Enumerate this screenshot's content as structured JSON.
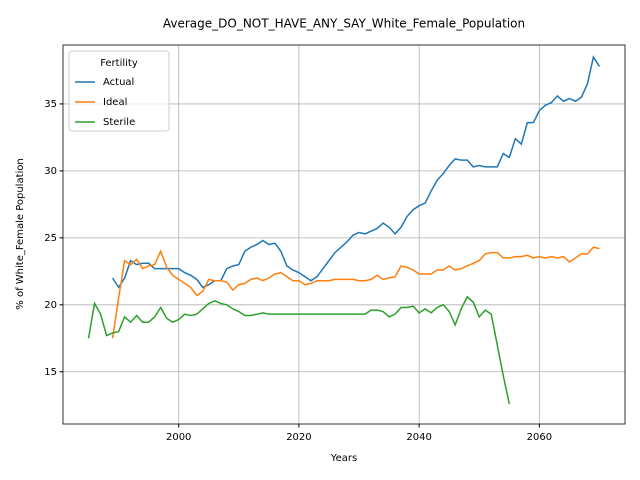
{
  "chart_data": {
    "type": "line",
    "title": "Average_DO_NOT_HAVE_ANY_SAY_White_Female_Population",
    "xlabel": "Years",
    "ylabel": "% of White_Female Population",
    "legend_title": "Fertility",
    "legend_loc": "upper-left",
    "grid": true,
    "xlim": [
      1980.75,
      2074.25
    ],
    "ylim": [
      11.1,
      39.4
    ],
    "xticks": [
      2000,
      2020,
      2040,
      2060
    ],
    "yticks": [
      15,
      20,
      25,
      30,
      35
    ],
    "x": [
      1985,
      1986,
      1987,
      1988,
      1989,
      1990,
      1991,
      1992,
      1993,
      1994,
      1995,
      1996,
      1997,
      1998,
      1999,
      2000,
      2001,
      2002,
      2003,
      2004,
      2005,
      2006,
      2007,
      2008,
      2009,
      2010,
      2011,
      2012,
      2013,
      2014,
      2015,
      2016,
      2017,
      2018,
      2019,
      2020,
      2021,
      2022,
      2023,
      2024,
      2025,
      2026,
      2027,
      2028,
      2029,
      2030,
      2031,
      2032,
      2033,
      2034,
      2035,
      2036,
      2037,
      2038,
      2039,
      2040,
      2041,
      2042,
      2043,
      2044,
      2045,
      2046,
      2047,
      2048,
      2049,
      2050,
      2051,
      2052,
      2053,
      2054,
      2055,
      2056,
      2057,
      2058,
      2059,
      2060,
      2061,
      2062,
      2063,
      2064,
      2065,
      2066,
      2067,
      2068,
      2069,
      2070
    ],
    "series": [
      {
        "name": "Actual",
        "color": "#1f77b4",
        "values": [
          null,
          null,
          null,
          null,
          22.0,
          21.3,
          22.0,
          23.3,
          23.0,
          23.1,
          23.1,
          22.7,
          22.7,
          22.7,
          22.7,
          22.7,
          22.4,
          22.2,
          21.9,
          21.3,
          21.5,
          21.8,
          21.8,
          22.7,
          22.9,
          23.0,
          24.0,
          24.3,
          24.5,
          24.8,
          24.5,
          24.6,
          24.0,
          22.9,
          22.6,
          22.4,
          22.1,
          21.8,
          22.1,
          22.7,
          23.3,
          23.9,
          24.3,
          24.7,
          25.2,
          25.4,
          25.3,
          25.5,
          25.7,
          26.1,
          25.8,
          25.3,
          25.8,
          26.6,
          27.1,
          27.4,
          27.6,
          28.5,
          29.3,
          29.8,
          30.4,
          30.9,
          30.8,
          30.8,
          30.3,
          30.4,
          30.3,
          30.3,
          30.3,
          31.3,
          31.0,
          32.4,
          32.0,
          33.6,
          33.6,
          34.5,
          34.9,
          35.1,
          35.6,
          35.2,
          35.4,
          35.2,
          35.5,
          36.5,
          38.5,
          37.8
        ]
      },
      {
        "name": "Ideal",
        "color": "#ff7f0e",
        "values": [
          null,
          null,
          null,
          null,
          17.5,
          20.5,
          23.3,
          23.0,
          23.4,
          22.7,
          22.9,
          23.0,
          24.0,
          22.8,
          22.2,
          21.9,
          21.6,
          21.3,
          20.7,
          21.0,
          21.9,
          21.8,
          21.8,
          21.7,
          21.1,
          21.5,
          21.6,
          21.9,
          22.0,
          21.8,
          22.0,
          22.3,
          22.4,
          22.1,
          21.8,
          21.8,
          21.5,
          21.6,
          21.8,
          21.8,
          21.8,
          21.9,
          21.9,
          21.9,
          21.9,
          21.8,
          21.8,
          21.9,
          22.2,
          21.9,
          22.0,
          22.1,
          22.9,
          22.8,
          22.6,
          22.3,
          22.3,
          22.3,
          22.6,
          22.6,
          22.9,
          22.6,
          22.7,
          22.9,
          23.1,
          23.3,
          23.8,
          23.9,
          23.9,
          23.5,
          23.5,
          23.6,
          23.6,
          23.7,
          23.5,
          23.6,
          23.5,
          23.6,
          23.5,
          23.6,
          23.2,
          23.5,
          23.8,
          23.8,
          24.3,
          24.2
        ]
      },
      {
        "name": "Sterile",
        "color": "#2ca02c",
        "values": [
          17.5,
          20.1,
          19.3,
          17.7,
          17.9,
          18.0,
          19.1,
          18.7,
          19.2,
          18.7,
          18.7,
          19.1,
          19.8,
          19.0,
          18.7,
          18.9,
          19.3,
          19.2,
          19.3,
          19.7,
          20.1,
          20.3,
          20.1,
          20.0,
          19.7,
          19.5,
          19.2,
          19.2,
          19.3,
          19.4,
          19.3,
          19.3,
          19.3,
          19.3,
          19.3,
          19.3,
          19.3,
          19.3,
          19.3,
          19.3,
          19.3,
          19.3,
          19.3,
          19.3,
          19.3,
          19.3,
          19.3,
          19.6,
          19.6,
          19.5,
          19.1,
          19.3,
          19.8,
          19.8,
          19.9,
          19.4,
          19.7,
          19.4,
          19.8,
          20.0,
          19.5,
          18.5,
          19.7,
          20.6,
          20.2,
          19.1,
          19.6,
          19.3,
          17.0,
          14.7,
          12.6,
          null,
          null,
          null,
          null,
          null,
          null,
          null,
          null,
          null,
          null,
          null,
          null,
          null,
          null,
          null
        ]
      }
    ]
  }
}
